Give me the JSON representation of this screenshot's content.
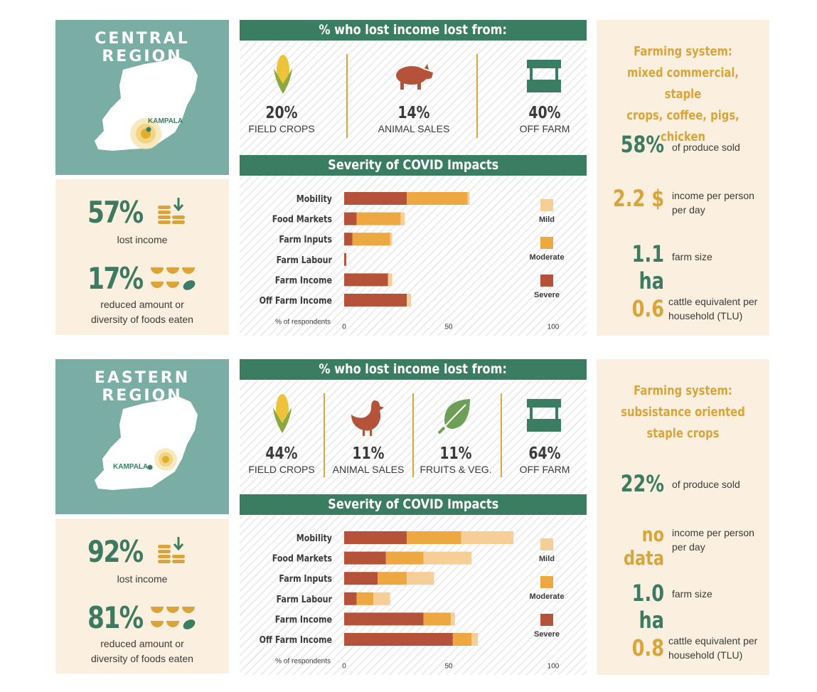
{
  "colors": {
    "severe": "#b5533a",
    "moderate": "#eea842",
    "mild": "#f6cf98",
    "green": "#3c7a62",
    "gold": "#dba43b"
  },
  "regions": [
    {
      "title": "CENTRAL REGION",
      "city": "KAMPALA",
      "lost_income": {
        "value": "57%",
        "label": "lost income"
      },
      "reduced_food": {
        "value": "17%",
        "label_1": "reduced amount or",
        "label_2": "diversity of foods eaten"
      },
      "sources_title": "% who lost income lost from:",
      "sources": [
        {
          "pct": "20%",
          "label": "FIELD CROPS",
          "icon": "corn-icon"
        },
        {
          "pct": "14%",
          "label": "ANIMAL SALES",
          "icon": "pig-icon"
        },
        {
          "pct": "40%",
          "label": "OFF FARM",
          "icon": "market-stall-icon"
        }
      ],
      "severity_title": "Severity of COVID Impacts",
      "farming_system": [
        "Farming system:",
        "mixed commercial, staple",
        "crops, coffee, pigs, chicken"
      ],
      "stats": [
        {
          "value": "58%",
          "label": "of produce sold",
          "color": "green"
        },
        {
          "value": "2.2 $",
          "label": "income per person per day",
          "color": "gold"
        },
        {
          "value": "1.1 ha",
          "label": "farm size",
          "color": "green"
        },
        {
          "value": "0.6",
          "label": "cattle equivalent per household (TLU)",
          "color": "gold"
        }
      ]
    },
    {
      "title": "EASTERN REGION",
      "city": "KAMPALA",
      "lost_income": {
        "value": "92%",
        "label": "lost income"
      },
      "reduced_food": {
        "value": "81%",
        "label_1": "reduced amount or",
        "label_2": "diversity of foods eaten"
      },
      "sources_title": "% who lost income lost from:",
      "sources": [
        {
          "pct": "44%",
          "label": "FIELD CROPS",
          "icon": "corn-icon"
        },
        {
          "pct": "11%",
          "label": "ANIMAL SALES",
          "icon": "chicken-icon"
        },
        {
          "pct": "11%",
          "label": "FRUITS & VEG.",
          "icon": "leaf-icon"
        },
        {
          "pct": "64%",
          "label": "OFF FARM",
          "icon": "market-stall-icon"
        }
      ],
      "severity_title": "Severity of COVID Impacts",
      "farming_system": [
        "Farming system:",
        "subsistance oriented",
        "staple crops"
      ],
      "stats": [
        {
          "value": "22%",
          "label": "of produce sold",
          "color": "green"
        },
        {
          "value": "no data",
          "label": "income per person per day",
          "color": "gold"
        },
        {
          "value": "1.0 ha",
          "label": "farm size",
          "color": "green"
        },
        {
          "value": "0.8",
          "label": "cattle equivalent per household (TLU)",
          "color": "gold"
        }
      ]
    }
  ],
  "chart_data": [
    {
      "type": "bar",
      "title": "Severity of COVID Impacts",
      "orientation": "horizontal",
      "stacked": true,
      "categories": [
        "Mobility",
        "Food Markets",
        "Farm Inputs",
        "Farm Labour",
        "Farm Income",
        "Off Farm Income"
      ],
      "series": [
        {
          "name": "Severe",
          "values": [
            30,
            6,
            4,
            1,
            21,
            30
          ]
        },
        {
          "name": "Moderate",
          "values": [
            29,
            21,
            18,
            0,
            0,
            0
          ]
        },
        {
          "name": "Mild",
          "values": [
            1,
            2,
            1,
            0,
            2,
            2
          ]
        }
      ],
      "xlabel": "% of respondents",
      "xlim": [
        0,
        100
      ],
      "xticks": [
        "0",
        "50",
        "100"
      ],
      "legend_position": "right",
      "legend_order": [
        "Mild",
        "Moderate",
        "Severe"
      ]
    },
    {
      "type": "bar",
      "title": "Severity of COVID Impacts",
      "orientation": "horizontal",
      "stacked": true,
      "categories": [
        "Mobility",
        "Food Markets",
        "Farm Inputs",
        "Farm Labour",
        "Farm Income",
        "Off Farm Income"
      ],
      "series": [
        {
          "name": "Severe",
          "values": [
            30,
            20,
            16,
            6,
            38,
            52
          ]
        },
        {
          "name": "Moderate",
          "values": [
            26,
            18,
            14,
            8,
            13,
            9
          ]
        },
        {
          "name": "Mild",
          "values": [
            25,
            23,
            13,
            8,
            2,
            3
          ]
        }
      ],
      "xlabel": "% of respondents",
      "xlim": [
        0,
        100
      ],
      "xticks": [
        "0",
        "50",
        "100"
      ],
      "legend_position": "right",
      "legend_order": [
        "Mild",
        "Moderate",
        "Severe"
      ]
    }
  ]
}
